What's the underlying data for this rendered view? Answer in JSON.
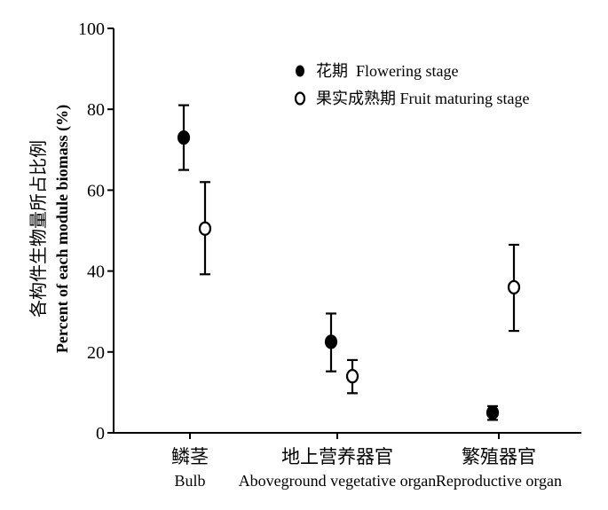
{
  "chart_data": {
    "type": "scatter",
    "ylabel_cn": "各构件生物量所占比例",
    "ylabel": "Percent of each module biomass (%)",
    "ylim": [
      0,
      100
    ],
    "yticks": [
      0,
      20,
      40,
      60,
      80,
      100
    ],
    "grid": false,
    "legend_position": "top-right",
    "categories": [
      {
        "cn": "鳞茎",
        "en": "Bulb"
      },
      {
        "cn": "地上营养器官",
        "en": "Aboveground vegetative organ"
      },
      {
        "cn": "繁殖器官",
        "en": "Reproductive organ"
      }
    ],
    "series": [
      {
        "name": "花期  Flowering stage",
        "marker": "filled-circle",
        "values": [
          73,
          22.5,
          5
        ],
        "error_low": [
          65,
          15.2,
          3.2
        ],
        "error_high": [
          81,
          29.5,
          6.6
        ]
      },
      {
        "name": "果实成熟期 Fruit maturing stage",
        "marker": "open-circle",
        "values": [
          50.5,
          14,
          36
        ],
        "error_low": [
          39.2,
          9.8,
          25.2
        ],
        "error_high": [
          62,
          18,
          46.5
        ]
      }
    ]
  }
}
